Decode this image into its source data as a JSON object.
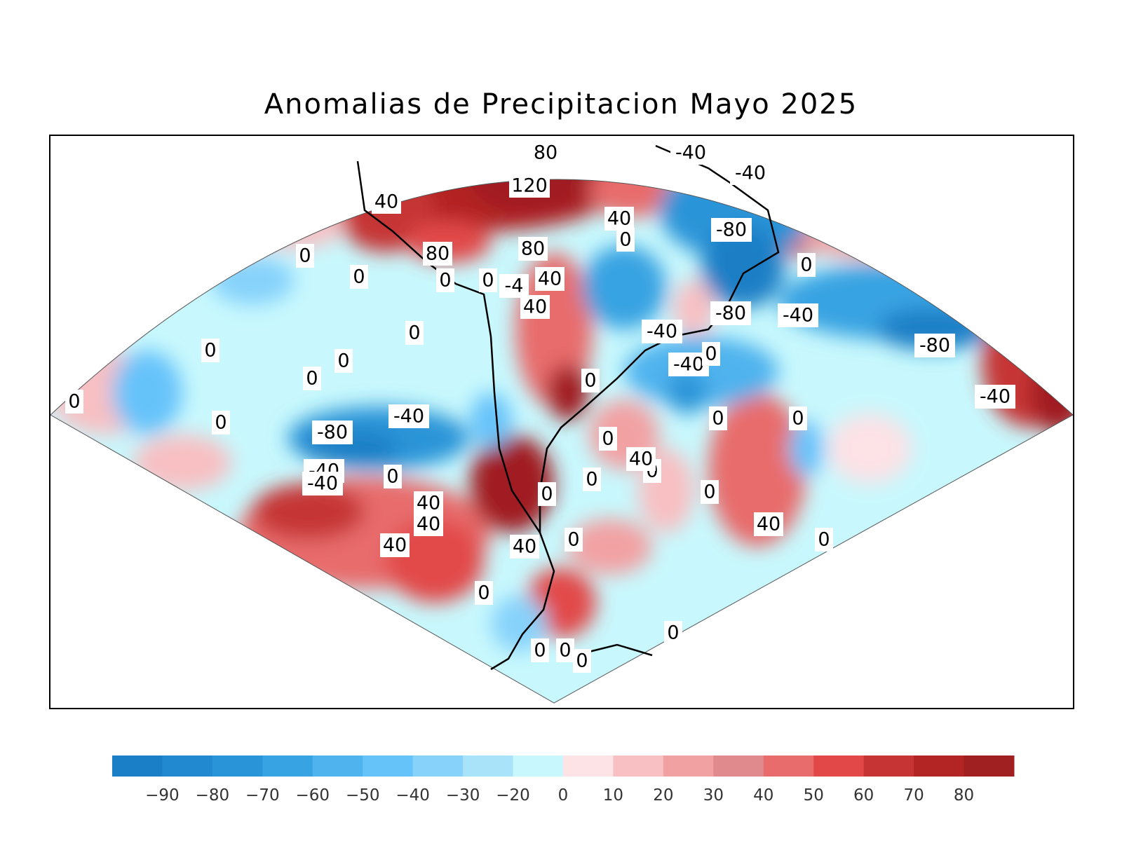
{
  "title": "Anomalias de Precipitacion Mayo 2025",
  "contour_labels": [
    {
      "text": "80"
    },
    {
      "text": "120"
    },
    {
      "text": "40"
    },
    {
      "text": "80"
    },
    {
      "text": "80"
    },
    {
      "text": "0"
    },
    {
      "text": "0"
    },
    {
      "text": "-4"
    },
    {
      "text": "40"
    },
    {
      "text": "40"
    },
    {
      "text": "40"
    },
    {
      "text": "0"
    },
    {
      "text": "-40"
    },
    {
      "text": "-40"
    },
    {
      "text": "-80"
    },
    {
      "text": "0"
    },
    {
      "text": "-80"
    },
    {
      "text": "-40"
    },
    {
      "text": "-40"
    },
    {
      "text": "-40"
    },
    {
      "text": "0"
    },
    {
      "text": "-80"
    },
    {
      "text": "-40"
    },
    {
      "text": "0"
    },
    {
      "text": "0"
    },
    {
      "text": "0"
    },
    {
      "text": "0"
    },
    {
      "text": "0"
    },
    {
      "text": "0"
    },
    {
      "text": "0"
    },
    {
      "text": "0"
    },
    {
      "text": "-40"
    },
    {
      "text": "-80"
    },
    {
      "text": "-40"
    },
    {
      "text": "-40"
    },
    {
      "text": "0"
    },
    {
      "text": "0"
    },
    {
      "text": "40"
    },
    {
      "text": "40"
    },
    {
      "text": "40"
    },
    {
      "text": "40"
    },
    {
      "text": "0"
    },
    {
      "text": "0"
    },
    {
      "text": "0"
    },
    {
      "text": "0"
    },
    {
      "text": "0"
    },
    {
      "text": "40"
    },
    {
      "text": "0"
    },
    {
      "text": "0"
    },
    {
      "text": "0"
    },
    {
      "text": "0"
    },
    {
      "text": "0"
    },
    {
      "text": "0"
    },
    {
      "text": "0"
    },
    {
      "text": "0"
    },
    {
      "text": "40"
    },
    {
      "text": "0"
    }
  ],
  "colorbar": {
    "colors": [
      "#1a7fc6",
      "#2189cf",
      "#2a94d8",
      "#38a3e2",
      "#4fb3ee",
      "#66c3fa",
      "#86d2fb",
      "#a8e3fa",
      "#c8f8fd",
      "#fde2e6",
      "#f8c0c3",
      "#f2a1a3",
      "#e08a8d",
      "#e86c6c",
      "#e24848",
      "#c63434",
      "#b32424",
      "#a01f21"
    ],
    "tick_labels": [
      "-90",
      "-80",
      "-70",
      "-60",
      "-50",
      "-40",
      "-30",
      "-20",
      "0",
      "10",
      "20",
      "30",
      "40",
      "50",
      "60",
      "70",
      "80"
    ]
  }
}
